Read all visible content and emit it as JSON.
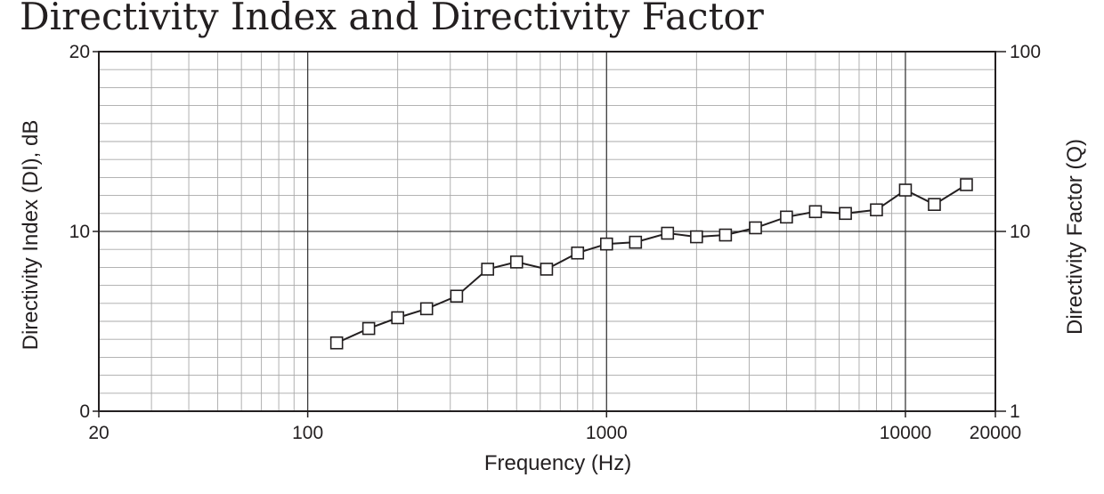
{
  "chart_data": {
    "type": "line",
    "title": "Directivity Index and Directivity Factor",
    "xlabel": "Frequency (Hz)",
    "ylabel": "Directivity Index (DI), dB",
    "y2label": "Directivity Factor (Q)",
    "xscale": "log",
    "xlim": [
      20,
      20000
    ],
    "ylim": [
      0,
      20
    ],
    "y2scale": "log",
    "y2lim": [
      1,
      100
    ],
    "grid": true,
    "legend": "none",
    "x_tick_labels": [
      "20",
      "100",
      "1000",
      "10000",
      "20000"
    ],
    "y_tick_labels": [
      "0",
      "10",
      "20"
    ],
    "y2_tick_labels": [
      "1",
      "10",
      "100"
    ],
    "series": [
      {
        "marker": "open-square",
        "x": [
          125,
          160,
          200,
          250,
          315,
          400,
          500,
          630,
          800,
          1000,
          1250,
          1600,
          2000,
          2500,
          3150,
          4000,
          5000,
          6300,
          8000,
          10000,
          12500,
          16000
        ],
        "y": [
          3.8,
          4.6,
          5.2,
          5.7,
          6.4,
          7.9,
          8.3,
          7.9,
          8.8,
          9.3,
          9.4,
          9.9,
          9.7,
          9.8,
          10.2,
          10.8,
          11.1,
          11.0,
          11.2,
          12.3,
          11.5,
          12.6
        ]
      }
    ]
  }
}
